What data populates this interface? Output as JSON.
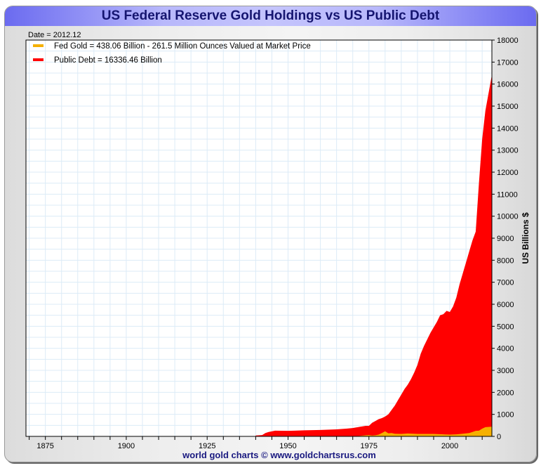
{
  "chart_data": {
    "type": "area",
    "title": "US Federal Reserve Gold Holdings vs US Public Debt",
    "date_label": "Date = 2012.12",
    "ylabel": "US Billions $",
    "footer": "world gold charts © www.goldchartsrus.com",
    "xlim": [
      1869,
      2013
    ],
    "ylim": [
      0,
      18000
    ],
    "x_ticks": [
      "1875",
      "1900",
      "1925",
      "1950",
      "1975",
      "2000"
    ],
    "y_ticks": [
      "0",
      "1000",
      "2000",
      "3000",
      "4000",
      "5000",
      "6000",
      "7000",
      "8000",
      "9000",
      "10000",
      "11000",
      "12000",
      "13000",
      "14000",
      "15000",
      "16000",
      "17000",
      "18000"
    ],
    "grid": true,
    "legend_position": "top-left",
    "series": [
      {
        "name": "Public Debt",
        "legend": "Public Debt = 16336.46 Billion",
        "color": "#ff0000",
        "x": [
          1940,
          1942,
          1943,
          1944,
          1946,
          1950,
          1952,
          1955,
          1960,
          1965,
          1968,
          1970,
          1972,
          1974,
          1975,
          1976,
          1977,
          1978,
          1979,
          1980,
          1981,
          1982,
          1983,
          1984,
          1985,
          1986,
          1987,
          1988,
          1989,
          1990,
          1991,
          1992,
          1993,
          1994,
          1995,
          1996,
          1997,
          1998,
          1999,
          2000,
          2001,
          2002,
          2003,
          2004,
          2005,
          2006,
          2007,
          2008,
          2009,
          2010,
          2011,
          2012.9
        ],
        "values": [
          40,
          60,
          150,
          200,
          260,
          250,
          260,
          275,
          290,
          320,
          350,
          380,
          430,
          480,
          480,
          620,
          700,
          780,
          830,
          900,
          1000,
          1200,
          1400,
          1650,
          1900,
          2150,
          2350,
          2600,
          2900,
          3250,
          3750,
          4100,
          4400,
          4700,
          4950,
          5200,
          5500,
          5550,
          5700,
          5650,
          5900,
          6300,
          6900,
          7400,
          7900,
          8400,
          8900,
          9300,
          11500,
          13500,
          14800,
          16336.46
        ]
      },
      {
        "name": "Fed Gold",
        "legend": "Fed Gold = 438.06 Billion - 261.5 Million Ounces Valued at Market Price",
        "color": "#f5b000",
        "x": [
          1940,
          1970,
          1972,
          1974,
          1975,
          1976,
          1977,
          1978,
          1979,
          1980,
          1981,
          1982,
          1983,
          1985,
          1987,
          1990,
          1995,
          1998,
          2000,
          2002,
          2004,
          2006,
          2007,
          2008,
          2009,
          2010,
          2011,
          2012.9
        ],
        "values": [
          0,
          10,
          20,
          50,
          60,
          40,
          50,
          80,
          150,
          230,
          140,
          150,
          120,
          110,
          130,
          110,
          110,
          90,
          80,
          90,
          120,
          150,
          200,
          250,
          260,
          350,
          420,
          438.06
        ]
      }
    ]
  }
}
